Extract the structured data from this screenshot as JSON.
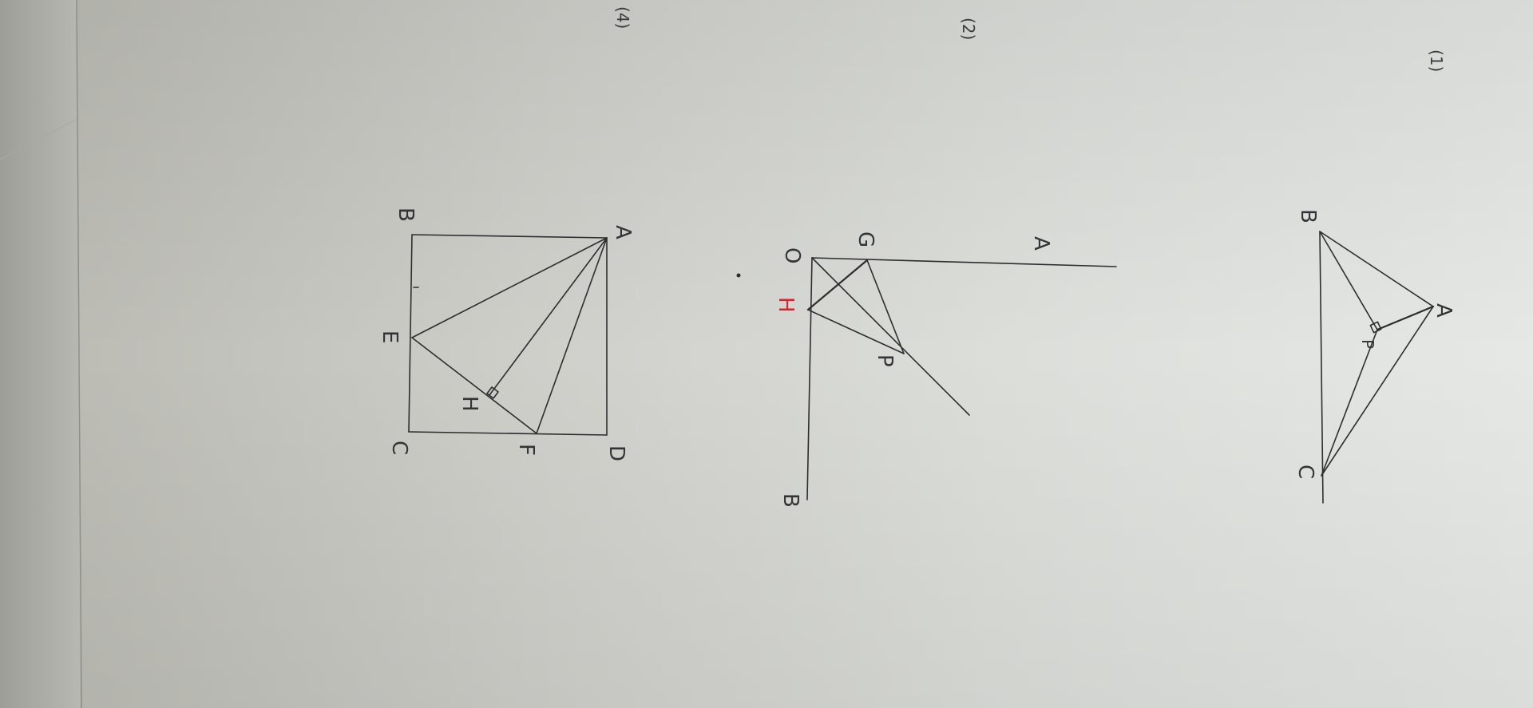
{
  "photo": {
    "description_free": true,
    "ink_color": "#2d2d30",
    "accent_color": "#d8222e",
    "paper_color": "#e4e6e3"
  },
  "problems": {
    "p1": {
      "number": "(1)",
      "labels": {
        "a": "A",
        "b": "B",
        "c": "C",
        "p": "P"
      }
    },
    "p2": {
      "number": "(2)",
      "labels": {
        "a": "A",
        "b": "B",
        "o": "O",
        "g": "G",
        "p": "P",
        "h": "H"
      }
    },
    "p3": {
      "number": "(4)",
      "labels": {
        "a": "A",
        "b": "B",
        "c": "C",
        "d": "D",
        "e": "E",
        "f": "F",
        "h": "H"
      }
    }
  }
}
